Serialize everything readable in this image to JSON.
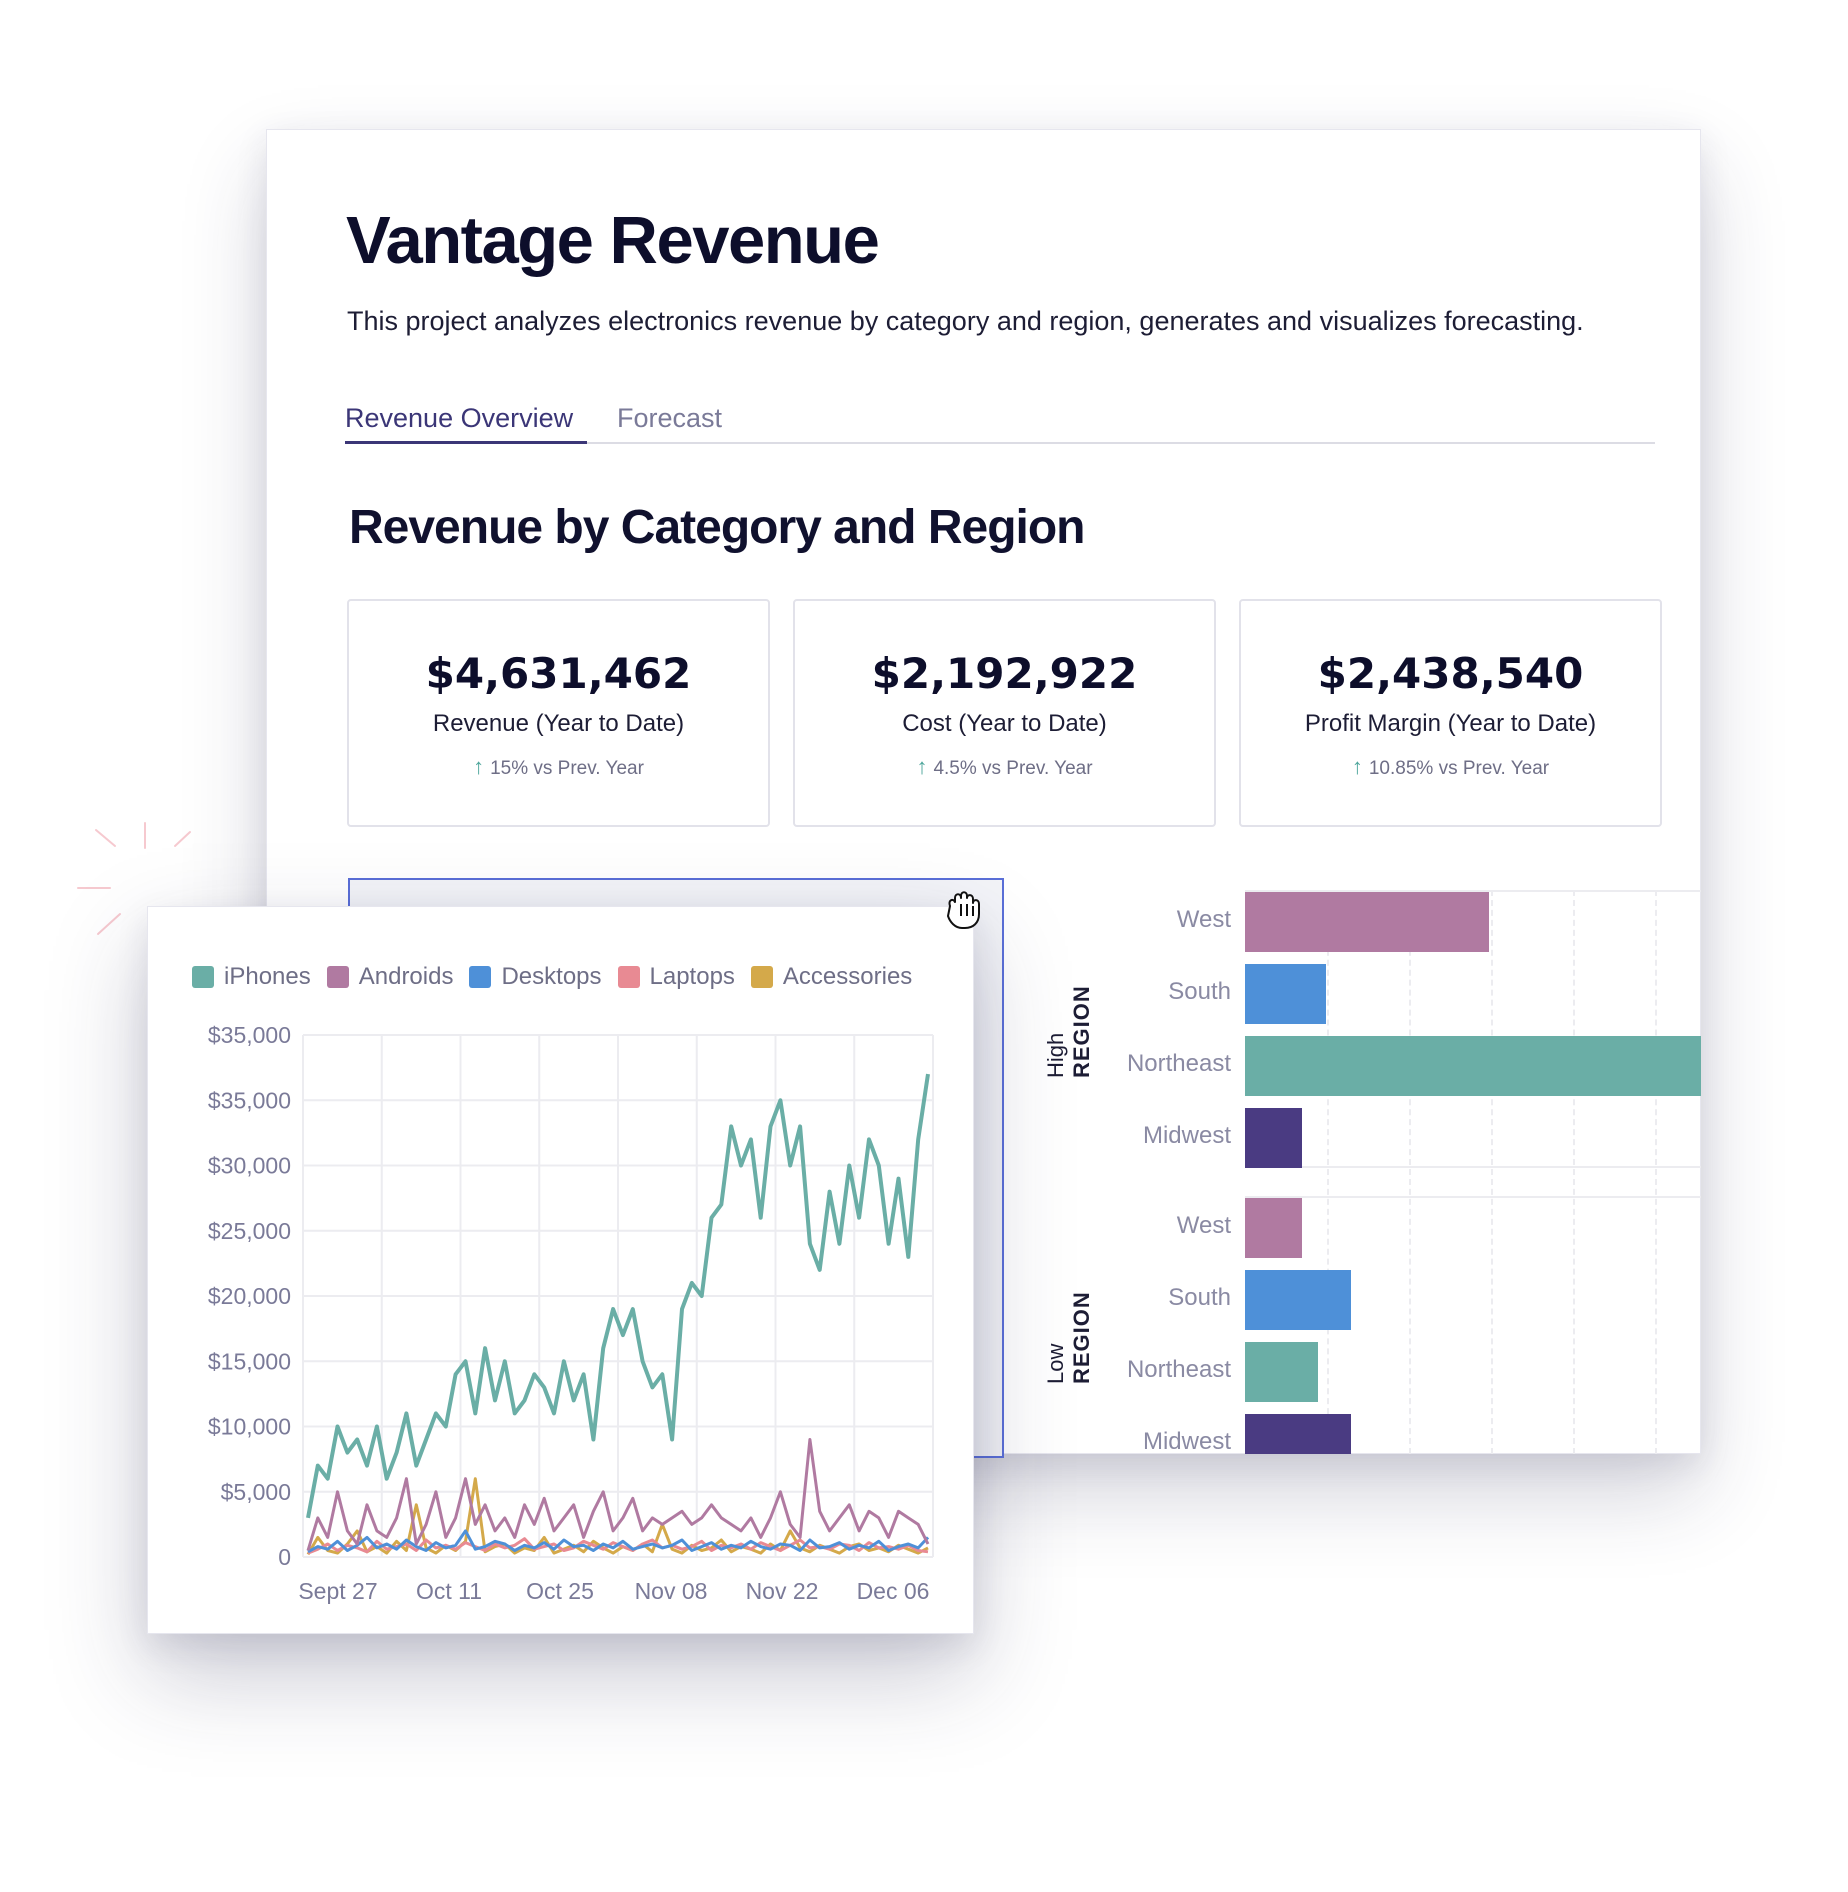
{
  "header": {
    "title": "Vantage Revenue",
    "description": "This project analyzes electronics revenue by category and region, generates and visualizes forecasting."
  },
  "tabs": [
    {
      "label": "Revenue Overview",
      "active": true
    },
    {
      "label": "Forecast",
      "active": false
    }
  ],
  "section_title": "Revenue by Category and Region",
  "kpis": [
    {
      "value": "$4,631,462",
      "label": "Revenue (Year to Date)",
      "change": "15% vs Prev. Year"
    },
    {
      "value": "$2,192,922",
      "label": "Cost (Year to Date)",
      "change": "4.5% vs Prev. Year"
    },
    {
      "value": "$2,438,540",
      "label": "Profit Margin (Year to Date)",
      "change": "10.85% vs Prev. Year"
    }
  ],
  "colors": {
    "iPhones": "#6aaea6",
    "Androids": "#b07aa1",
    "Desktops": "#4e90d8",
    "Laptops": "#e88a93",
    "Accessories": "#d4a94a",
    "Midwest": "#4a3b82",
    "accent": "#3b3677"
  },
  "icons": {
    "grab": "hand-grab-icon",
    "up_arrow": "arrow-up-icon"
  },
  "chart_data": [
    {
      "type": "line",
      "legend": [
        "iPhones",
        "Androids",
        "Desktops",
        "Laptops",
        "Accessories"
      ],
      "y_tick_labels": [
        "$35,000",
        "$35,000",
        "$30,000",
        "$25,000",
        "$20,000",
        "$15,000",
        "$10,000",
        "$5,000",
        "0"
      ],
      "x_tick_labels": [
        "Sept 27",
        "Oct 11",
        "Oct 25",
        "Nov 08",
        "Nov 22",
        "Dec 06"
      ],
      "ylim": [
        0,
        40000
      ],
      "grid": true,
      "series": [
        {
          "name": "iPhones",
          "values": [
            3000,
            7000,
            6000,
            10000,
            8000,
            9000,
            7000,
            10000,
            6000,
            8000,
            11000,
            7000,
            9000,
            11000,
            10000,
            14000,
            15000,
            11000,
            16000,
            12000,
            15000,
            11000,
            12000,
            14000,
            13000,
            11000,
            15000,
            12000,
            14000,
            9000,
            16000,
            19000,
            17000,
            19000,
            15000,
            13000,
            14000,
            9000,
            19000,
            21000,
            20000,
            26000,
            27000,
            33000,
            30000,
            32000,
            26000,
            33000,
            35000,
            30000,
            33000,
            24000,
            22000,
            28000,
            24000,
            30000,
            26000,
            32000,
            30000,
            24000,
            29000,
            23000,
            32000,
            37000
          ]
        },
        {
          "name": "Androids",
          "values": [
            500,
            3000,
            1500,
            5000,
            2000,
            1000,
            4000,
            2000,
            1500,
            3000,
            6000,
            1000,
            2500,
            5000,
            1500,
            3000,
            6000,
            2500,
            4000,
            2000,
            3000,
            1500,
            4000,
            2500,
            4500,
            2000,
            3000,
            4000,
            1500,
            3500,
            5000,
            2000,
            3000,
            4500,
            2000,
            3000,
            2500,
            3000,
            3500,
            2500,
            3000,
            4000,
            3000,
            2500,
            2000,
            3000,
            1500,
            3000,
            5000,
            2500,
            1500,
            9000,
            3500,
            2000,
            3000,
            4000,
            2000,
            3500,
            3000,
            1500,
            3500,
            3000,
            2500,
            1000
          ]
        },
        {
          "name": "Desktops",
          "values": [
            400,
            800,
            600,
            1200,
            500,
            900,
            1500,
            700,
            1000,
            600,
            1300,
            800,
            500,
            1100,
            700,
            900,
            2000,
            600,
            800,
            1200,
            1000,
            500,
            900,
            700,
            1100,
            600,
            1300,
            800,
            900,
            500,
            1000,
            700,
            1200,
            600,
            800,
            1000,
            700,
            900,
            1300,
            500,
            800,
            1100,
            600,
            900,
            700,
            1200,
            800,
            600,
            1000,
            900,
            500,
            1300,
            700,
            800,
            1100,
            600,
            900,
            700,
            1200,
            500,
            800,
            1000,
            700,
            1500
          ]
        },
        {
          "name": "Laptops",
          "values": [
            300,
            600,
            1000,
            500,
            900,
            700,
            400,
            1200,
            600,
            800,
            1000,
            500,
            1300,
            700,
            900,
            600,
            1100,
            800,
            500,
            1000,
            700,
            900,
            1400,
            600,
            800,
            1000,
            500,
            700,
            1200,
            900,
            600,
            1100,
            800,
            500,
            1000,
            1300,
            700,
            900,
            600,
            800,
            1200,
            500,
            900,
            700,
            1000,
            600,
            1100,
            800,
            500,
            900,
            1300,
            700,
            800,
            600,
            1000,
            900,
            500,
            1100,
            700,
            800,
            600,
            900,
            500,
            400
          ]
        },
        {
          "name": "Accessories",
          "values": [
            200,
            1500,
            500,
            300,
            1000,
            2000,
            400,
            800,
            300,
            1200,
            500,
            4000,
            700,
            300,
            900,
            500,
            1200,
            6000,
            400,
            800,
            1000,
            300,
            700,
            500,
            1500,
            300,
            600,
            900,
            400,
            1200,
            700,
            300,
            800,
            500,
            1000,
            400,
            2500,
            600,
            300,
            900,
            500,
            700,
            1300,
            400,
            800,
            600,
            300,
            1000,
            500,
            2000,
            700,
            400,
            900,
            600,
            300,
            800,
            1000,
            500,
            700,
            400,
            900,
            600,
            300,
            700
          ]
        }
      ]
    },
    {
      "type": "bar",
      "orientation": "horizontal",
      "groups": [
        {
          "name": "High",
          "axis_label": "REGION",
          "categories": [
            "West",
            "South",
            "Northeast",
            "Midwest"
          ],
          "values": [
            300,
            100,
            560,
            70
          ]
        },
        {
          "name": "Low",
          "axis_label": "REGION",
          "categories": [
            "West",
            "South",
            "Northeast",
            "Midwest"
          ],
          "values": [
            70,
            130,
            90,
            130
          ]
        }
      ],
      "category_colors": {
        "West": "#b07aa1",
        "South": "#4e90d8",
        "Northeast": "#6aaea6",
        "Midwest": "#4a3b82"
      }
    }
  ]
}
